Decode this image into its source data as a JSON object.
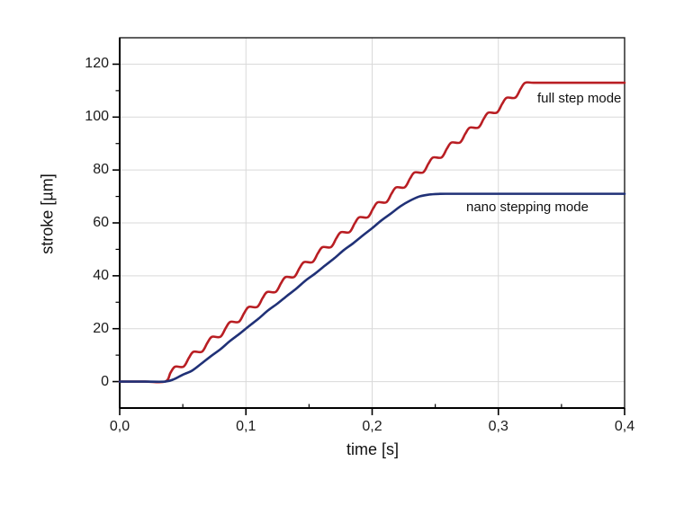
{
  "chart_data": {
    "type": "line",
    "title": "",
    "xlabel": "time [s]",
    "ylabel": "stroke [µm]",
    "xlim": [
      0,
      0.4
    ],
    "ylim": [
      -10,
      130
    ],
    "x_major_ticks": [
      0,
      0.1,
      0.2,
      0.3,
      0.4
    ],
    "x_tick_labels": [
      "0,0",
      "0,1",
      "0,2",
      "0,3",
      "0,4"
    ],
    "x_minor_ticks": [
      0.05,
      0.15,
      0.25,
      0.35
    ],
    "y_major_ticks": [
      0,
      20,
      40,
      60,
      80,
      100,
      120
    ],
    "y_tick_labels": [
      "0",
      "20",
      "40",
      "60",
      "80",
      "100",
      "120"
    ],
    "y_minor_ticks": [
      10,
      30,
      50,
      70,
      90,
      110
    ],
    "grid": true,
    "grid_color": "#d9d9d9",
    "frame_color": "#1c1c1c",
    "axis_color": "#000000",
    "legend_position": "inline-annotations",
    "series": [
      {
        "name": "full step mode",
        "color": "#b91e23",
        "plateau_value": 113,
        "points": [
          [
            0,
            0
          ],
          [
            0.02,
            0
          ],
          [
            0.036,
            0
          ],
          [
            0.0402,
            3.3
          ],
          [
            0.0438,
            5.62
          ],
          [
            0.0506,
            5.65
          ],
          [
            0.0548,
            8.95
          ],
          [
            0.0584,
            11.27
          ],
          [
            0.0652,
            11.3
          ],
          [
            0.0694,
            14.6
          ],
          [
            0.073,
            16.92
          ],
          [
            0.0798,
            16.95
          ],
          [
            0.084,
            20.25
          ],
          [
            0.0876,
            22.57
          ],
          [
            0.0944,
            22.6
          ],
          [
            0.0986,
            25.9
          ],
          [
            0.1022,
            28.22
          ],
          [
            0.109,
            28.25
          ],
          [
            0.1132,
            31.55
          ],
          [
            0.1168,
            33.87
          ],
          [
            0.1236,
            33.9
          ],
          [
            0.1278,
            37.2
          ],
          [
            0.1314,
            39.52
          ],
          [
            0.1382,
            39.55
          ],
          [
            0.1424,
            42.85
          ],
          [
            0.146,
            45.17
          ],
          [
            0.1528,
            45.2
          ],
          [
            0.157,
            48.5
          ],
          [
            0.1606,
            50.82
          ],
          [
            0.1674,
            50.85
          ],
          [
            0.1716,
            54.15
          ],
          [
            0.1752,
            56.47
          ],
          [
            0.182,
            56.5
          ],
          [
            0.1862,
            59.8
          ],
          [
            0.1898,
            62.12
          ],
          [
            0.1966,
            62.15
          ],
          [
            0.2008,
            65.45
          ],
          [
            0.2044,
            67.77
          ],
          [
            0.2112,
            67.8
          ],
          [
            0.2154,
            71.1
          ],
          [
            0.219,
            73.42
          ],
          [
            0.2258,
            73.45
          ],
          [
            0.23,
            76.75
          ],
          [
            0.2336,
            79.07
          ],
          [
            0.2404,
            79.1
          ],
          [
            0.2446,
            82.4
          ],
          [
            0.2482,
            84.72
          ],
          [
            0.255,
            84.75
          ],
          [
            0.2592,
            88.05
          ],
          [
            0.2628,
            90.37
          ],
          [
            0.2696,
            90.4
          ],
          [
            0.2738,
            93.7
          ],
          [
            0.2774,
            96.02
          ],
          [
            0.2842,
            96.05
          ],
          [
            0.2884,
            99.35
          ],
          [
            0.292,
            101.67
          ],
          [
            0.2988,
            101.7
          ],
          [
            0.303,
            105.0
          ],
          [
            0.3066,
            107.32
          ],
          [
            0.3134,
            107.35
          ],
          [
            0.3176,
            110.65
          ],
          [
            0.3212,
            112.97
          ],
          [
            0.328,
            113
          ],
          [
            0.345,
            113
          ],
          [
            0.4,
            113
          ]
        ]
      },
      {
        "name": "nano stepping mode",
        "color": "#203177",
        "plateau_value": 71,
        "points": [
          [
            0,
            0
          ],
          [
            0.02,
            0
          ],
          [
            0.036,
            0
          ],
          [
            0.043,
            0.9
          ],
          [
            0.05,
            2.6
          ],
          [
            0.0575,
            4.2
          ],
          [
            0.065,
            6.9
          ],
          [
            0.0725,
            9.7
          ],
          [
            0.08,
            12.3
          ],
          [
            0.0875,
            15.4
          ],
          [
            0.095,
            18.1
          ],
          [
            0.1025,
            21.0
          ],
          [
            0.11,
            23.8
          ],
          [
            0.1175,
            26.9
          ],
          [
            0.125,
            29.5
          ],
          [
            0.1325,
            32.4
          ],
          [
            0.14,
            35.2
          ],
          [
            0.1475,
            38.3
          ],
          [
            0.155,
            40.9
          ],
          [
            0.1625,
            43.8
          ],
          [
            0.17,
            46.6
          ],
          [
            0.1775,
            49.7
          ],
          [
            0.185,
            52.3
          ],
          [
            0.1925,
            55.2
          ],
          [
            0.2,
            58.0
          ],
          [
            0.2075,
            61.0
          ],
          [
            0.215,
            63.6
          ],
          [
            0.2225,
            66.3
          ],
          [
            0.23,
            68.4
          ],
          [
            0.2375,
            70.0
          ],
          [
            0.245,
            70.7
          ],
          [
            0.2525,
            70.95
          ],
          [
            0.26,
            71
          ],
          [
            0.3,
            71
          ],
          [
            0.35,
            71
          ],
          [
            0.4,
            71
          ]
        ]
      }
    ]
  }
}
